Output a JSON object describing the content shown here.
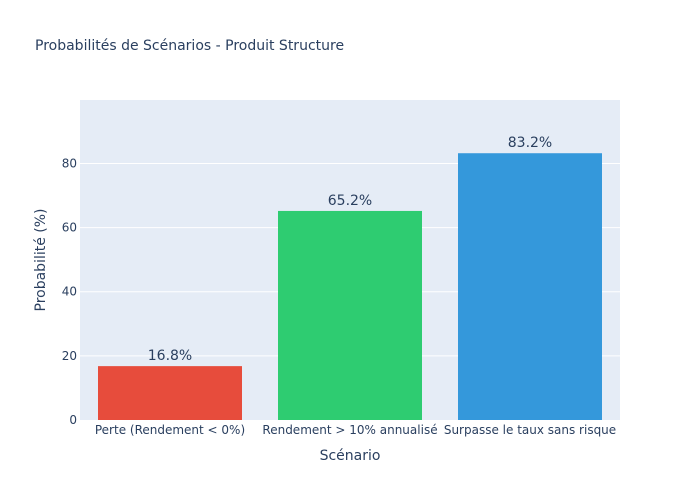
{
  "chart_data": {
    "type": "bar",
    "title": "Probabilités de Scénarios - Produit Structure",
    "xlabel": "Scénario",
    "ylabel": "Probabilité (%)",
    "categories": [
      "Perte (Rendement < 0%)",
      "Rendement > 10% annualisé",
      "Surpasse le taux sans risque"
    ],
    "values": [
      16.8,
      65.2,
      83.2
    ],
    "data_labels": [
      "16.8%",
      "65.2%",
      "83.2%"
    ],
    "colors": [
      "#e74c3c",
      "#2ecc71",
      "#3498db"
    ],
    "ylim": [
      0,
      99.8
    ],
    "yticks": [
      0,
      20,
      40,
      60,
      80
    ],
    "grid": true,
    "plot_background": "#e5ecf6",
    "grid_color": "#ffffff",
    "text_color": "#2a3f5f"
  }
}
